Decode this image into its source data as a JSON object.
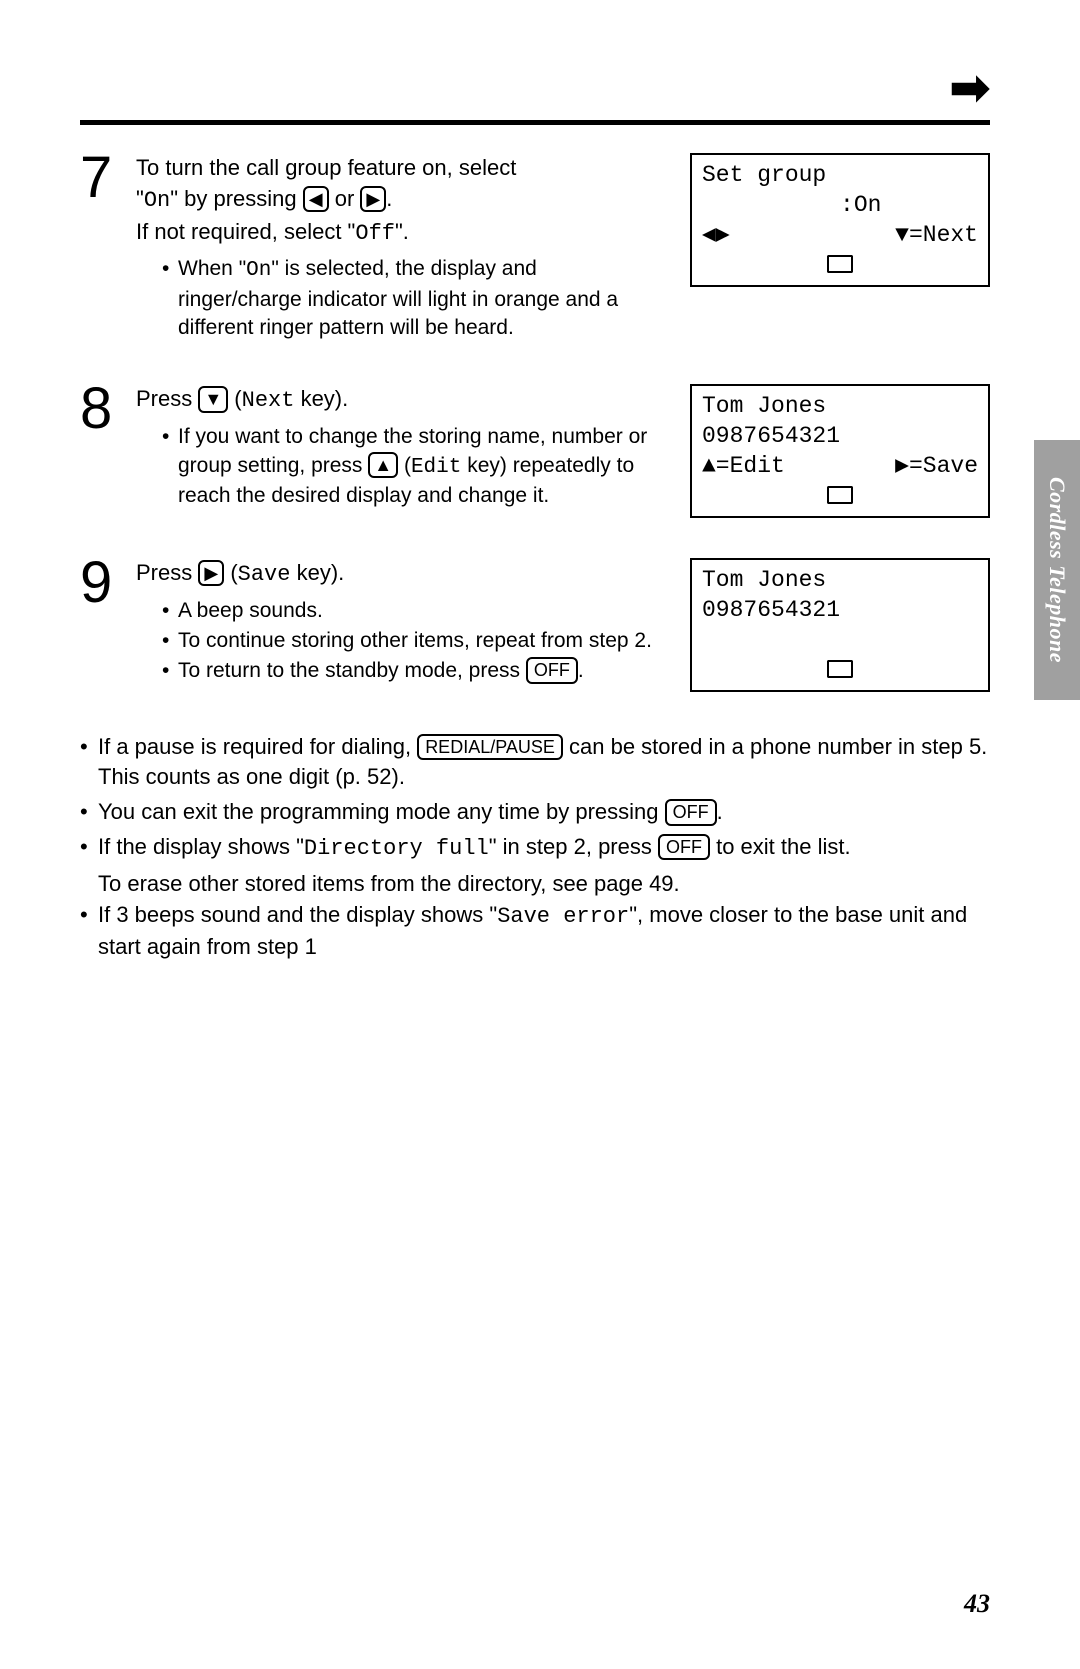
{
  "sideTab": "Cordless Telephone",
  "pageNumber": "43",
  "steps": {
    "s7": {
      "num": "7",
      "line1_a": "To turn the call group feature on, select",
      "line1_b_quoteOpen": "\"",
      "line1_b_mono": "On",
      "line1_b_close": "\" by pressing ",
      "line1_or": " or ",
      "line1_period": ".",
      "line2_a": "If not required, select \"",
      "line2_mono": "Off",
      "line2_b": "\".",
      "bullet1_a": "When \"",
      "bullet1_mono": "On",
      "bullet1_b": "\" is selected, the display and ringer/charge indicator will light in orange and a different ringer pattern will be heard.",
      "lcd": {
        "l1": "Set group",
        "l2": "          :On",
        "l3a": "◀▶",
        "l3b": "▼=Next"
      }
    },
    "s8": {
      "num": "8",
      "line1_a": "Press ",
      "line1_b": " (",
      "line1_mono": "Next",
      "line1_c": " key).",
      "bullet1_a": "If you want to change the storing name, number or group setting, press ",
      "bullet1_b": " (",
      "bullet1_mono": "Edit",
      "bullet1_c": " key) repeatedly to reach the desired display and change it.",
      "lcd": {
        "l1": "Tom Jones",
        "l2": "0987654321",
        "l3a": "▲=Edit",
        "l3b": "▶=Save"
      }
    },
    "s9": {
      "num": "9",
      "line1_a": "Press ",
      "line1_b": " (",
      "line1_mono": "Save",
      "line1_c": " key).",
      "bullet1": "A beep sounds.",
      "bullet2": "To continue storing other items, repeat from step 2.",
      "bullet3_a": "To return to the standby mode, press ",
      "bullet3_b": ".",
      "lcd": {
        "l1": "Tom Jones",
        "l2": "0987654321"
      }
    }
  },
  "keys": {
    "left": "◀",
    "right": "▶",
    "down": "▼",
    "up": "▲",
    "off": "OFF",
    "redial": "REDIAL/PAUSE"
  },
  "notes": {
    "n1_a": "If a pause is required for dialing, ",
    "n1_b": " can be stored in a phone number in step 5. This counts as one digit (p. 52).",
    "n2_a": "You can exit the programming mode any time by pressing ",
    "n2_b": ".",
    "n3_a": "If the display shows  \"",
    "n3_mono": "Directory full",
    "n3_b": "\" in step 2, press ",
    "n3_c": " to exit the list.",
    "n3_d": "To erase other stored items from the directory, see page 49.",
    "n4_a": "If 3 beeps sound and the display shows \"",
    "n4_mono": "Save error",
    "n4_b": "\", move closer to the base unit and start again from step 1"
  }
}
